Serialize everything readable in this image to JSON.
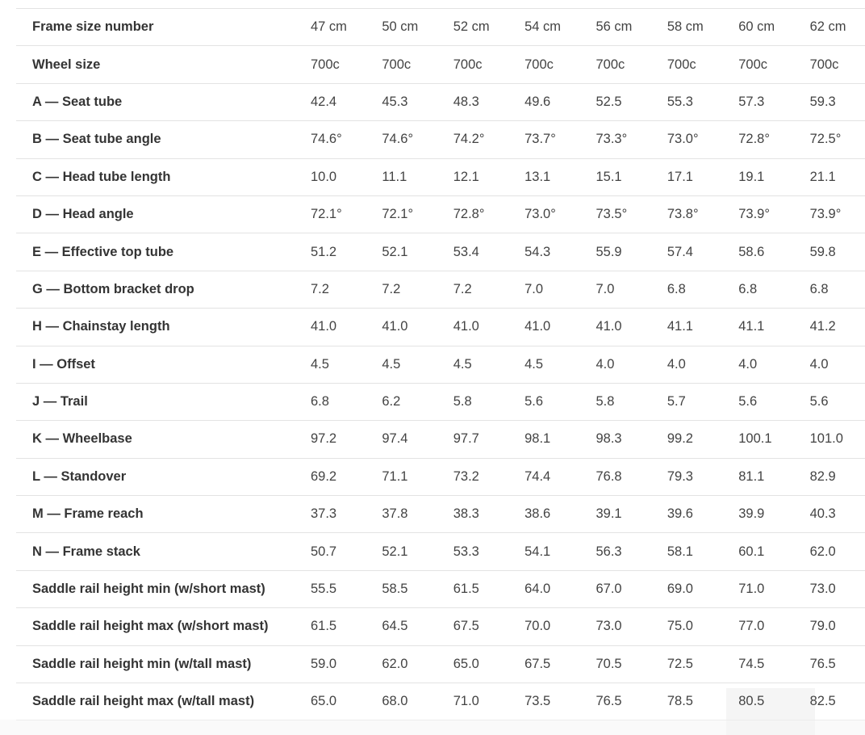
{
  "table": {
    "name": "bike-frame-geometry",
    "columns": [
      "47 cm",
      "50 cm",
      "52 cm",
      "54 cm",
      "56 cm",
      "58 cm",
      "60 cm",
      "62 cm"
    ],
    "rows": [
      {
        "label": "Frame size number",
        "values": [
          "47 cm",
          "50 cm",
          "52 cm",
          "54 cm",
          "56 cm",
          "58 cm",
          "60 cm",
          "62 cm"
        ]
      },
      {
        "label": "Wheel size",
        "values": [
          "700c",
          "700c",
          "700c",
          "700c",
          "700c",
          "700c",
          "700c",
          "700c"
        ]
      },
      {
        "label": "A — Seat tube",
        "values": [
          "42.4",
          "45.3",
          "48.3",
          "49.6",
          "52.5",
          "55.3",
          "57.3",
          "59.3"
        ]
      },
      {
        "label": "B — Seat tube angle",
        "values": [
          "74.6°",
          "74.6°",
          "74.2°",
          "73.7°",
          "73.3°",
          "73.0°",
          "72.8°",
          "72.5°"
        ]
      },
      {
        "label": "C — Head tube length",
        "values": [
          "10.0",
          "11.1",
          "12.1",
          "13.1",
          "15.1",
          "17.1",
          "19.1",
          "21.1"
        ]
      },
      {
        "label": "D — Head angle",
        "values": [
          "72.1°",
          "72.1°",
          "72.8°",
          "73.0°",
          "73.5°",
          "73.8°",
          "73.9°",
          "73.9°"
        ]
      },
      {
        "label": "E — Effective top tube",
        "values": [
          "51.2",
          "52.1",
          "53.4",
          "54.3",
          "55.9",
          "57.4",
          "58.6",
          "59.8"
        ]
      },
      {
        "label": "G — Bottom bracket drop",
        "values": [
          "7.2",
          "7.2",
          "7.2",
          "7.0",
          "7.0",
          "6.8",
          "6.8",
          "6.8"
        ]
      },
      {
        "label": "H — Chainstay length",
        "values": [
          "41.0",
          "41.0",
          "41.0",
          "41.0",
          "41.0",
          "41.1",
          "41.1",
          "41.2"
        ]
      },
      {
        "label": "I — Offset",
        "values": [
          "4.5",
          "4.5",
          "4.5",
          "4.5",
          "4.0",
          "4.0",
          "4.0",
          "4.0"
        ]
      },
      {
        "label": "J — Trail",
        "values": [
          "6.8",
          "6.2",
          "5.8",
          "5.6",
          "5.8",
          "5.7",
          "5.6",
          "5.6"
        ]
      },
      {
        "label": "K — Wheelbase",
        "values": [
          "97.2",
          "97.4",
          "97.7",
          "98.1",
          "98.3",
          "99.2",
          "100.1",
          "101.0"
        ]
      },
      {
        "label": "L — Standover",
        "values": [
          "69.2",
          "71.1",
          "73.2",
          "74.4",
          "76.8",
          "79.3",
          "81.1",
          "82.9"
        ]
      },
      {
        "label": "M — Frame reach",
        "values": [
          "37.3",
          "37.8",
          "38.3",
          "38.6",
          "39.1",
          "39.6",
          "39.9",
          "40.3"
        ]
      },
      {
        "label": "N — Frame stack",
        "values": [
          "50.7",
          "52.1",
          "53.3",
          "54.1",
          "56.3",
          "58.1",
          "60.1",
          "62.0"
        ]
      },
      {
        "label": "Saddle rail height min (w/short mast)",
        "values": [
          "55.5",
          "58.5",
          "61.5",
          "64.0",
          "67.0",
          "69.0",
          "71.0",
          "73.0"
        ]
      },
      {
        "label": "Saddle rail height max (w/short mast)",
        "values": [
          "61.5",
          "64.5",
          "67.5",
          "70.0",
          "73.0",
          "75.0",
          "77.0",
          "79.0"
        ]
      },
      {
        "label": "Saddle rail height min (w/tall mast)",
        "values": [
          "59.0",
          "62.0",
          "65.0",
          "67.5",
          "70.5",
          "72.5",
          "74.5",
          "76.5"
        ]
      },
      {
        "label": "Saddle rail height max (w/tall mast)",
        "values": [
          "65.0",
          "68.0",
          "71.0",
          "73.5",
          "76.5",
          "78.5",
          "80.5",
          "82.5"
        ]
      }
    ]
  },
  "colors": {
    "row_border": "#e3e3e3",
    "label_text": "#343434",
    "value_text": "#434343",
    "background": "#ffffff",
    "below_table_background": "#fafafa",
    "cell_highlight": "#f5f5f5"
  }
}
